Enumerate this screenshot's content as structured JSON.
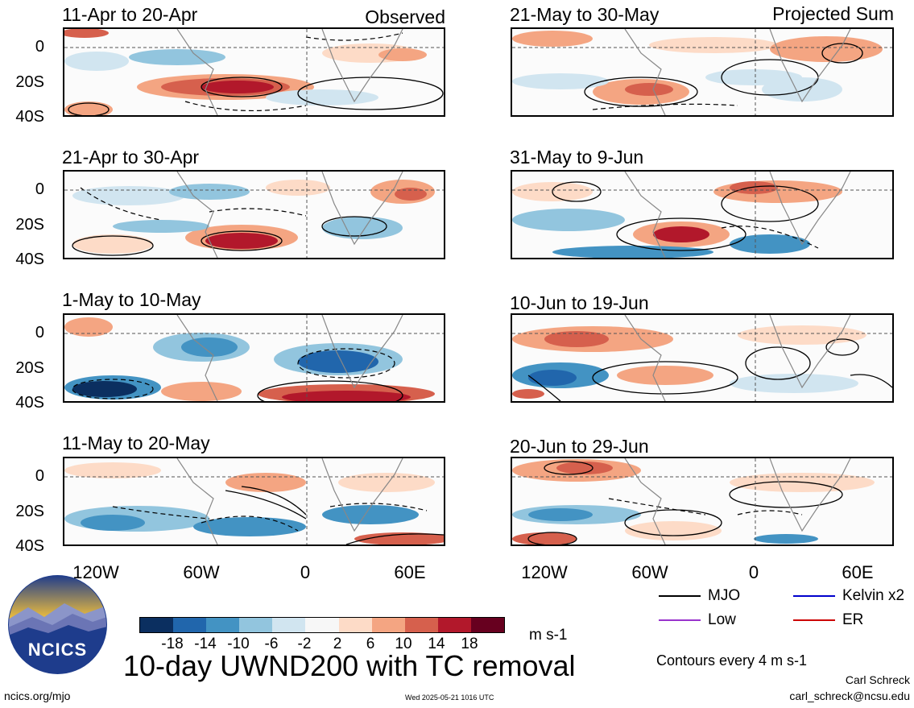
{
  "main_title": "10-day UWND200 with TC removal",
  "left_column_label": "Observed",
  "right_column_label": "Projected Sum",
  "panels": [
    {
      "title": "11-Apr to 20-Apr"
    },
    {
      "title": "21-Apr to 30-Apr"
    },
    {
      "title": "1-May to 10-May"
    },
    {
      "title": "11-May to 20-May"
    },
    {
      "title": "21-May to 30-May"
    },
    {
      "title": "31-May to 9-Jun"
    },
    {
      "title": "10-Jun to 19-Jun"
    },
    {
      "title": "20-Jun to 29-Jun"
    }
  ],
  "lat_ticks": [
    "0",
    "20S",
    "40S"
  ],
  "lon_ticks": [
    "120W",
    "60W",
    "0",
    "60E"
  ],
  "colorbar": {
    "unit": "m s-1",
    "tick_labels": [
      "-18",
      "-14",
      "-10",
      "-6",
      "-2",
      "2",
      "6",
      "10",
      "14",
      "18"
    ],
    "colors": [
      "#0b2f60",
      "#2166ac",
      "#4393c3",
      "#92c5de",
      "#d1e5f0",
      "#f7f7f7",
      "#fddbc7",
      "#f4a582",
      "#d6604d",
      "#b2182b",
      "#67001f"
    ]
  },
  "legend": {
    "items": [
      {
        "label": "MJO",
        "color": "#000000"
      },
      {
        "label": "Kelvin x2",
        "color": "#0000cc"
      },
      {
        "label": "Low",
        "color": "#9933cc"
      },
      {
        "label": "ER",
        "color": "#cc0000"
      }
    ],
    "contour_note": "Contours every 4 m s-1"
  },
  "logo": {
    "text": "NCICS"
  },
  "footer": {
    "url": "ncics.org/mjo",
    "timestamp": "Wed 2025-05-21 1016 UTC",
    "author": "Carl Schreck",
    "email": "carl_schreck@ncsu.edu"
  }
}
